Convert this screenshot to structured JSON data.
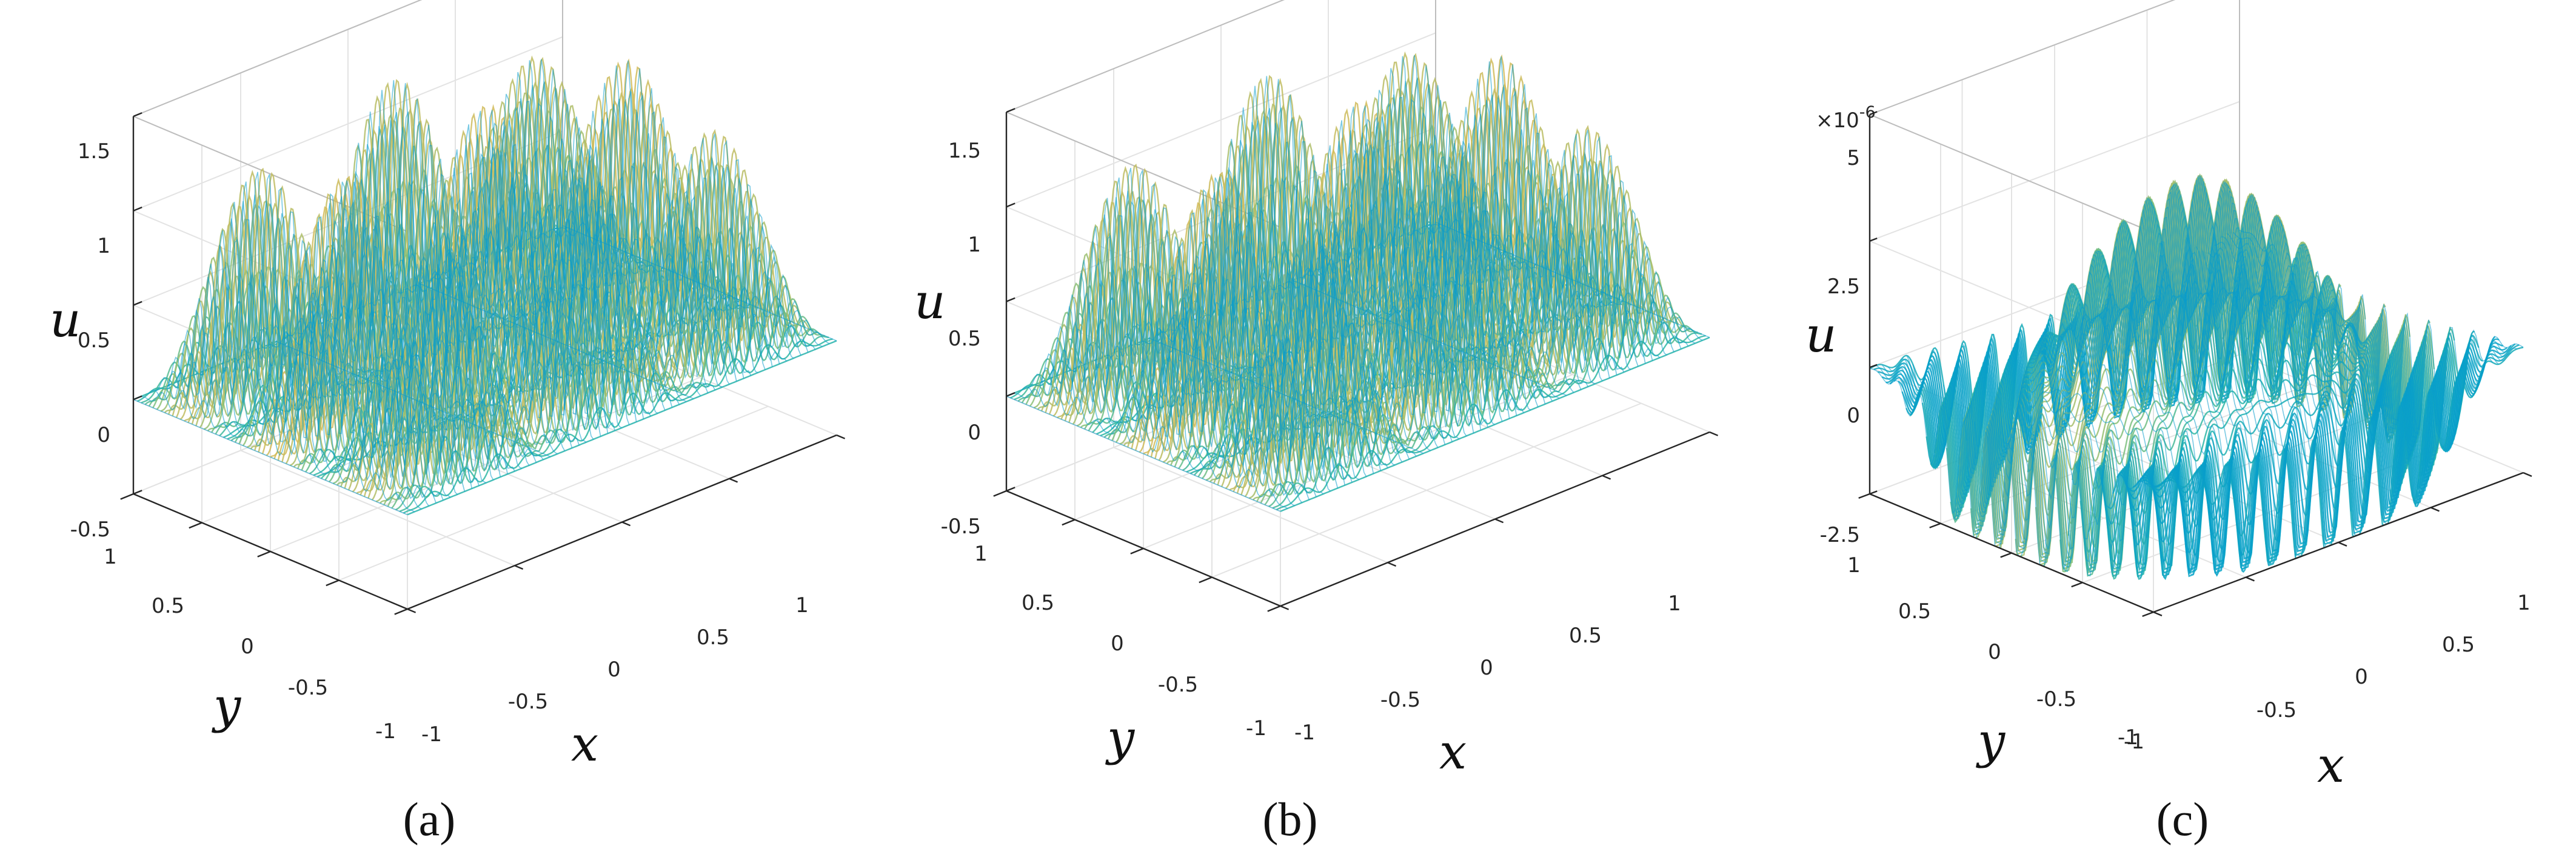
{
  "chart_data": [
    {
      "type": "surface",
      "caption": "(a)",
      "xlabel": "x",
      "ylabel": "y",
      "zlabel": "u",
      "xlim": [
        -1,
        1
      ],
      "ylim": [
        -1,
        1
      ],
      "zlim": [
        -0.5,
        1.5
      ],
      "x_ticks": [
        "-1",
        "-0.5",
        "0",
        "0.5",
        "1"
      ],
      "y_ticks": [
        "-1",
        "-0.5",
        "0",
        "0.5",
        "1"
      ],
      "z_ticks": [
        "-0.5",
        "0",
        "0.5",
        "1",
        "1.5"
      ],
      "z_exponent": "",
      "z_values": [
        -0.5,
        0,
        0.5,
        1,
        1.5
      ],
      "surface": {
        "kind": "oscillatory",
        "amplitude": 1.4,
        "bump_frequency": 1.5,
        "carrier_frequency": 40
      },
      "colormap": [
        "#352a87",
        "#0f5cdd",
        "#1481d6",
        "#06a4ca",
        "#2eb7a4",
        "#87bf77",
        "#d1bb59",
        "#fec832",
        "#f9fb0e"
      ],
      "grid": true
    },
    {
      "type": "surface",
      "caption": "(b)",
      "xlabel": "x",
      "ylabel": "y",
      "zlabel": "u",
      "xlim": [
        -1,
        1
      ],
      "ylim": [
        -1,
        1
      ],
      "zlim": [
        -0.5,
        1.5
      ],
      "x_ticks": [
        "-1",
        "-0.5",
        "0",
        "0.5",
        "1"
      ],
      "y_ticks": [
        "-1",
        "-0.5",
        "0",
        "0.5",
        "1"
      ],
      "z_ticks": [
        "-0.5",
        "0",
        "0.5",
        "1",
        "1.5"
      ],
      "z_exponent": "",
      "z_values": [
        -0.5,
        0,
        0.5,
        1,
        1.5
      ],
      "surface": {
        "kind": "oscillatory",
        "amplitude": 1.4,
        "bump_frequency": 1.5,
        "carrier_frequency": 40
      },
      "colormap": [
        "#352a87",
        "#0f5cdd",
        "#1481d6",
        "#06a4ca",
        "#2eb7a4",
        "#87bf77",
        "#d1bb59",
        "#fec832",
        "#f9fb0e"
      ],
      "grid": true
    },
    {
      "type": "surface",
      "caption": "(c)",
      "xlabel": "x",
      "ylabel": "y",
      "zlabel": "u",
      "xlim": [
        -1,
        1
      ],
      "ylim": [
        -1,
        1
      ],
      "zlim": [
        -2.5,
        5
      ],
      "x_ticks": [
        "-1",
        "-0.5",
        "0",
        "0.5",
        "1"
      ],
      "y_ticks": [
        "-1",
        "-0.5",
        "0",
        "0.5",
        "1"
      ],
      "z_ticks": [
        "-2.5",
        "0",
        "2.5",
        "5"
      ],
      "z_exponent": "×10",
      "z_exponent_power": "-6",
      "z_values": [
        -2.5,
        0,
        2.5,
        5
      ],
      "surface": {
        "kind": "error",
        "amplitude": 3.5,
        "carrier_frequency": 40
      },
      "colormap": [
        "#352a87",
        "#0f5cdd",
        "#1481d6",
        "#06a4ca",
        "#2eb7a4",
        "#87bf77",
        "#d1bb59",
        "#fec832",
        "#f9fb0e"
      ],
      "grid": true
    }
  ]
}
